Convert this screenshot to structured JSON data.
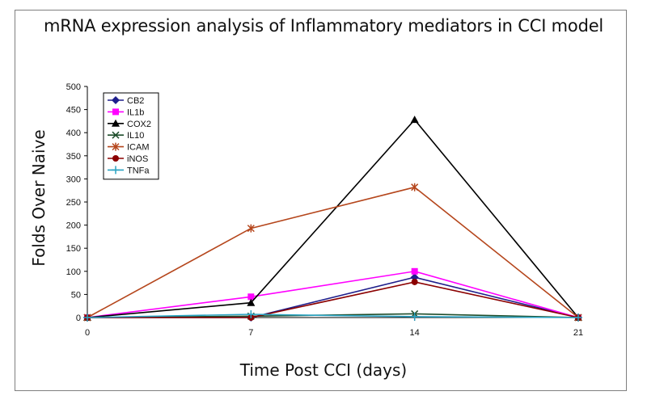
{
  "chart_data": {
    "type": "line",
    "title": "mRNA expression analysis of Inflammatory mediators in CCI model",
    "xlabel": "Time Post CCI (days)",
    "ylabel": "Folds Over Naive",
    "x": [
      0,
      7,
      14,
      21
    ],
    "xlim": [
      0,
      21
    ],
    "ylim": [
      0,
      500
    ],
    "x_ticks": [
      "0",
      "7",
      "14",
      "21"
    ],
    "y_ticks": [
      "0",
      "50",
      "100",
      "150",
      "200",
      "250",
      "300",
      "350",
      "400",
      "450",
      "500"
    ],
    "grid": false,
    "legend_position": "top-left",
    "series": [
      {
        "name": "CB2",
        "values": [
          0,
          0,
          87,
          0
        ],
        "color": "#1f1f8c",
        "marker": "diamond"
      },
      {
        "name": "IL1b",
        "values": [
          0,
          45,
          100,
          0
        ],
        "color": "#ff00ff",
        "marker": "square"
      },
      {
        "name": "COX2",
        "values": [
          0,
          32,
          428,
          0
        ],
        "color": "#000000",
        "marker": "triangle"
      },
      {
        "name": "IL10",
        "values": [
          0,
          3,
          8,
          0
        ],
        "color": "#1e4d2b",
        "marker": "x"
      },
      {
        "name": "ICAM",
        "values": [
          0,
          193,
          282,
          0
        ],
        "color": "#b5461c",
        "marker": "star"
      },
      {
        "name": "iNOS",
        "values": [
          0,
          0,
          77,
          0
        ],
        "color": "#8b0000",
        "marker": "circle"
      },
      {
        "name": "TNFa",
        "values": [
          0,
          7,
          2,
          0
        ],
        "color": "#2aa3c2",
        "marker": "plus"
      }
    ]
  }
}
